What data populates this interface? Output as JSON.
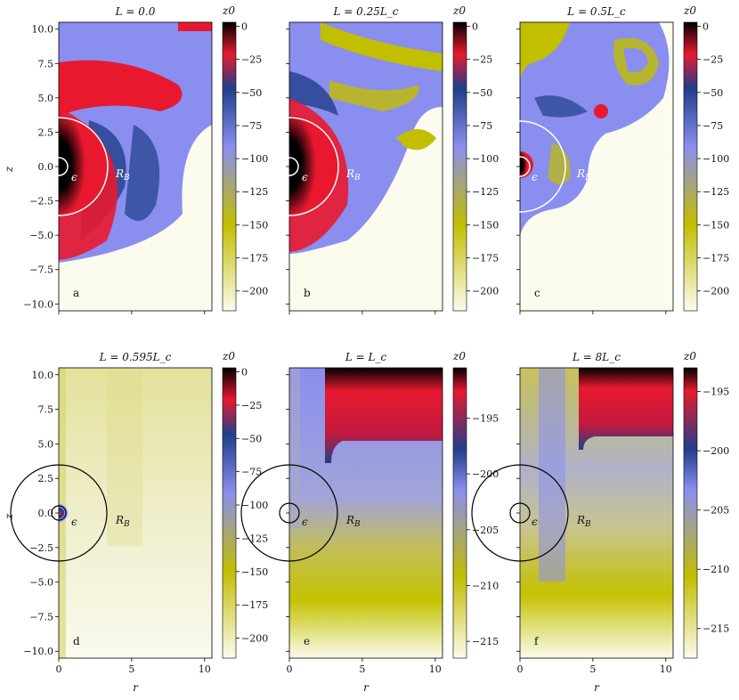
{
  "figure": {
    "x_axis_label": "r",
    "y_axis_label": "z",
    "colorbar_label": "z0",
    "x_ticks": [
      0,
      5,
      10
    ],
    "y_ticks": [
      10.0,
      7.5,
      5.0,
      2.5,
      0.0,
      -2.5,
      -5.0,
      -7.5,
      -10.0
    ],
    "y_tick_labels": [
      "10.0",
      "7.5",
      "5.0",
      "2.5",
      "0.0",
      "−2.5",
      "−5.0",
      "−7.5",
      "−10.0"
    ],
    "colormap_stops": [
      "#000000",
      "#e8192f",
      "#203f8a",
      "#8a8eee",
      "#c2be00",
      "#fbfbee"
    ]
  },
  "chart_data": [
    {
      "type": "heatmap",
      "panel_letter": "a",
      "title": "L = 0.0",
      "xlim": [
        0,
        10.5
      ],
      "ylim": [
        -10.5,
        10.5
      ],
      "colorbar": {
        "range": [
          -215,
          3
        ],
        "ticks": [
          0,
          -25,
          -50,
          -75,
          -100,
          -125,
          -150,
          -175,
          -200
        ],
        "tick_labels": [
          "0",
          "−25",
          "−50",
          "−75",
          "−100",
          "−125",
          "−150",
          "−175",
          "−200"
        ]
      },
      "annotations": {
        "inner_circle": "ϵ",
        "outer_circle": "R_B",
        "inner_radius": 0.5,
        "outer_radius": 3.2,
        "circle_color": "#ffffff"
      }
    },
    {
      "type": "heatmap",
      "panel_letter": "b",
      "title": "L = 0.25L_c",
      "xlim": [
        0,
        10.5
      ],
      "ylim": [
        -10.5,
        10.5
      ],
      "colorbar": {
        "range": [
          -215,
          3
        ],
        "ticks": [
          0,
          -25,
          -50,
          -75,
          -100,
          -125,
          -150,
          -175,
          -200
        ],
        "tick_labels": [
          "0",
          "−25",
          "−50",
          "−75",
          "−100",
          "−125",
          "−150",
          "−175",
          "−200"
        ]
      },
      "annotations": {
        "inner_circle": "ϵ",
        "outer_circle": "R_B",
        "inner_radius": 0.5,
        "outer_radius": 3.2,
        "circle_color": "#ffffff"
      }
    },
    {
      "type": "heatmap",
      "panel_letter": "c",
      "title": "L = 0.5L_c",
      "xlim": [
        0,
        10.5
      ],
      "ylim": [
        -10.5,
        10.5
      ],
      "colorbar": {
        "range": [
          -215,
          3
        ],
        "ticks": [
          0,
          -25,
          -50,
          -75,
          -100,
          -125,
          -150,
          -175,
          -200
        ],
        "tick_labels": [
          "0",
          "−25",
          "−50",
          "−75",
          "−100",
          "−125",
          "−150",
          "−175",
          "−200"
        ]
      },
      "annotations": {
        "inner_circle": "ϵ",
        "outer_circle": "R_B",
        "inner_radius": 0.5,
        "outer_radius": 3.2,
        "circle_color": "#ffffff"
      }
    },
    {
      "type": "heatmap",
      "panel_letter": "d",
      "title": "L = 0.595L_c",
      "xlim": [
        0,
        10.5
      ],
      "ylim": [
        -10.5,
        10.5
      ],
      "colorbar": {
        "range": [
          -215,
          3
        ],
        "ticks": [
          0,
          -25,
          -50,
          -75,
          -100,
          -125,
          -150,
          -175,
          -200
        ],
        "tick_labels": [
          "0",
          "−25",
          "−50",
          "−75",
          "−100",
          "−125",
          "−150",
          "−175",
          "−200"
        ]
      },
      "annotations": {
        "inner_circle": "ϵ",
        "outer_circle": "R_B",
        "inner_radius": 0.5,
        "outer_radius": 3.2,
        "circle_color": "#000000"
      }
    },
    {
      "type": "heatmap",
      "panel_letter": "e",
      "title": "L = L_c",
      "xlim": [
        0,
        10.5
      ],
      "ylim": [
        -10.5,
        10.5
      ],
      "colorbar": {
        "range": [
          -216.5,
          -190.5
        ],
        "ticks": [
          -195,
          -200,
          -205,
          -210,
          -215
        ],
        "tick_labels": [
          "−195",
          "−200",
          "−205",
          "−210",
          "−215"
        ]
      },
      "annotations": {
        "inner_circle": "ϵ",
        "outer_circle": "R_B",
        "inner_radius": 0.5,
        "outer_radius": 3.2,
        "circle_color": "#000000"
      }
    },
    {
      "type": "heatmap",
      "panel_letter": "f",
      "title": "L = 8L_c",
      "xlim": [
        0,
        10.5
      ],
      "ylim": [
        -10.5,
        10.5
      ],
      "colorbar": {
        "range": [
          -217.5,
          -193.0
        ],
        "ticks": [
          -195,
          -200,
          -205,
          -210,
          -215
        ],
        "tick_labels": [
          "−195",
          "−200",
          "−205",
          "−210",
          "−215"
        ]
      },
      "annotations": {
        "inner_circle": "ϵ",
        "outer_circle": "R_B",
        "inner_radius": 0.5,
        "outer_radius": 3.2,
        "circle_color": "#000000"
      }
    }
  ]
}
